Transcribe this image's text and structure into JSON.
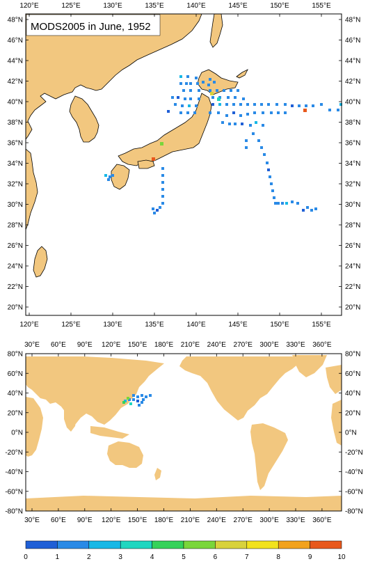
{
  "title": "MODS2005 in June, 1952",
  "colors": {
    "land": "#f2c77f",
    "ocean": "#ffffff",
    "frame": "#000000",
    "scale": [
      "#1f5fd6",
      "#2a8ae6",
      "#17b8e6",
      "#20d6c0",
      "#36d25a",
      "#7ad63a",
      "#d8d23c",
      "#f2e21c",
      "#f2a21c",
      "#e8581c"
    ]
  },
  "top_map": {
    "lon_ticks": [
      "120°E",
      "125°E",
      "130°E",
      "135°E",
      "140°E",
      "145°E",
      "150°E",
      "155°E"
    ],
    "lat_ticks": [
      "48°N",
      "46°N",
      "44°N",
      "42°N",
      "40°N",
      "38°N",
      "36°N",
      "34°N",
      "32°N",
      "30°N",
      "28°N",
      "26°N",
      "24°N",
      "22°N",
      "20°N"
    ]
  },
  "bottom_map": {
    "lon_ticks": [
      "30°E",
      "60°E",
      "90°E",
      "120°E",
      "150°E",
      "180°E",
      "210°E",
      "240°E",
      "270°E",
      "300°E",
      "330°E",
      "360°E"
    ],
    "lat_ticks": [
      "80°N",
      "60°N",
      "40°N",
      "20°N",
      "0°N",
      "-20°N",
      "-40°N",
      "-60°N",
      "-80°N"
    ]
  },
  "colorbar": {
    "labels": [
      "0",
      "1",
      "2",
      "3",
      "4",
      "5",
      "6",
      "7",
      "8",
      "9",
      "10"
    ]
  }
}
